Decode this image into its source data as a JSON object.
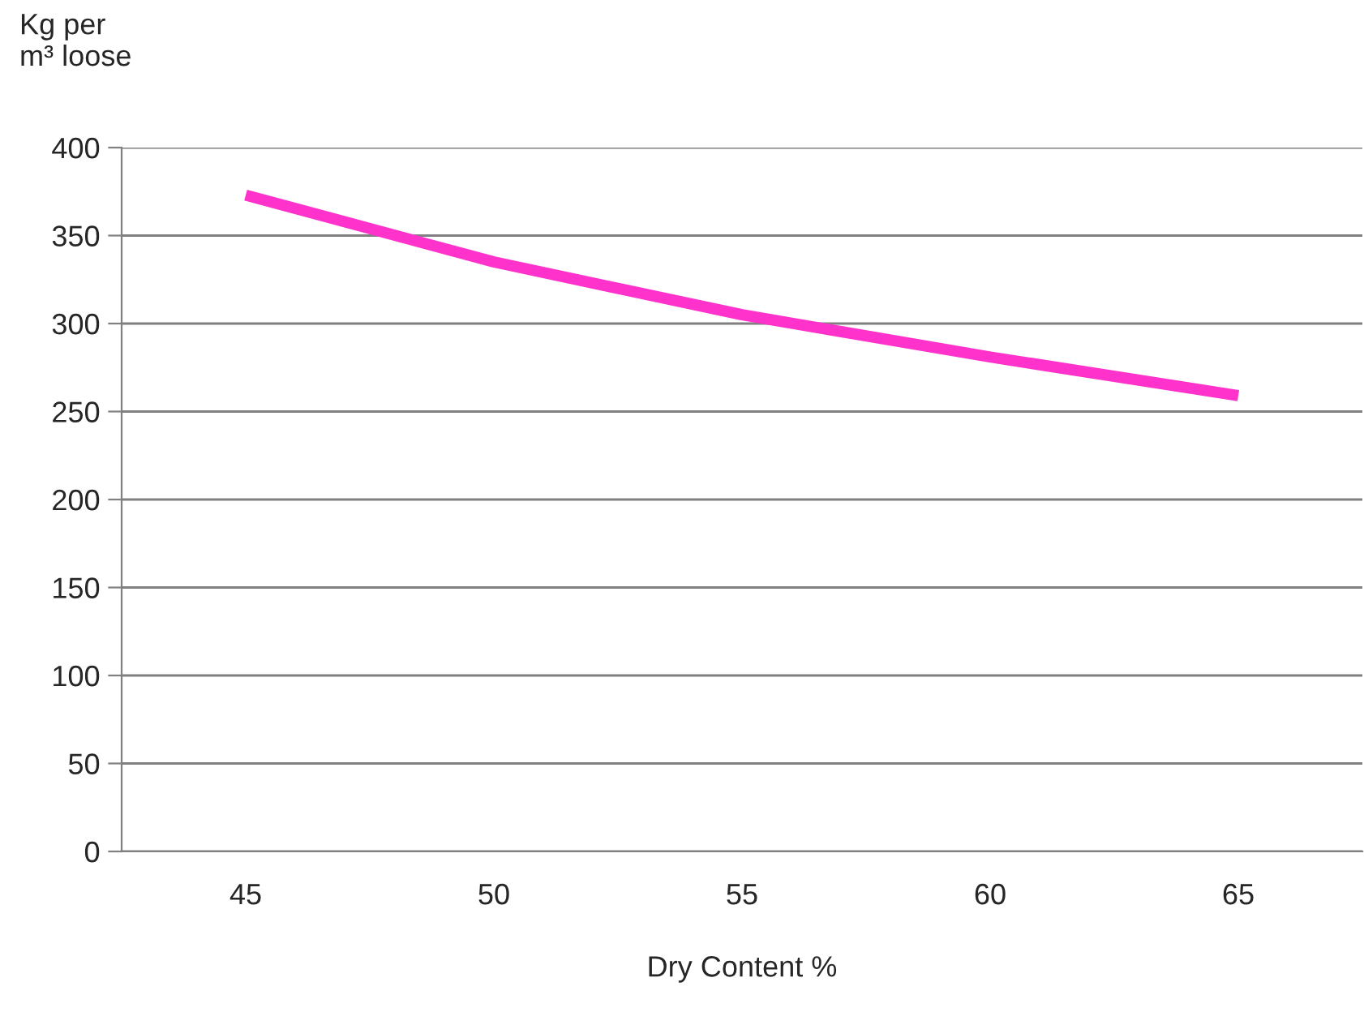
{
  "chart_data": {
    "type": "line",
    "xlabel": "Dry Content %",
    "ylabel": "Kg per\nm³ loose",
    "categories": [
      "45",
      "50",
      "55",
      "60",
      "65"
    ],
    "series": [
      {
        "color": "#ff33cc",
        "values": [
          373,
          335,
          305,
          281,
          259
        ]
      }
    ],
    "ylim": [
      0,
      400
    ],
    "yticks": [
      0,
      50,
      100,
      150,
      200,
      250,
      300,
      350,
      400
    ],
    "grid": "y",
    "legend": false,
    "marker": "none",
    "line_style": "solid"
  }
}
